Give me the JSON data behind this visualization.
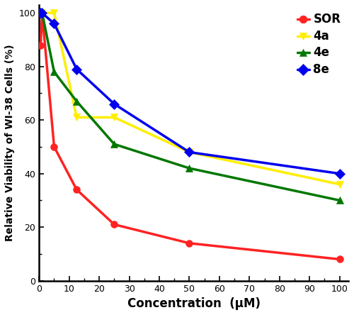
{
  "x_values": [
    0.5,
    1,
    5,
    12.5,
    25,
    50,
    100
  ],
  "SOR": [
    88,
    100,
    50,
    34,
    21,
    14,
    8
  ],
  "4a": [
    100,
    100,
    100,
    61,
    61,
    48,
    36
  ],
  "4e": [
    100,
    100,
    78,
    67,
    51,
    42,
    30
  ],
  "8e": [
    100,
    100,
    96,
    79,
    66,
    48,
    40
  ],
  "colors": {
    "SOR": "#FF2222",
    "4a": "#FFEE00",
    "4e": "#007700",
    "8e": "#0000EE"
  },
  "markers": {
    "SOR": "o",
    "4a": "v",
    "4e": "^",
    "8e": "D"
  },
  "xlabel": "Concentration  (μM)",
  "ylabel": "Relative Viability of WI-38 Cells (%)",
  "xlim": [
    0,
    103
  ],
  "ylim": [
    0,
    103
  ],
  "xticks": [
    0,
    10,
    20,
    30,
    40,
    50,
    60,
    70,
    80,
    90,
    100
  ],
  "yticks": [
    0,
    20,
    40,
    60,
    80,
    100
  ],
  "linewidth": 2.5,
  "markersize": 7
}
